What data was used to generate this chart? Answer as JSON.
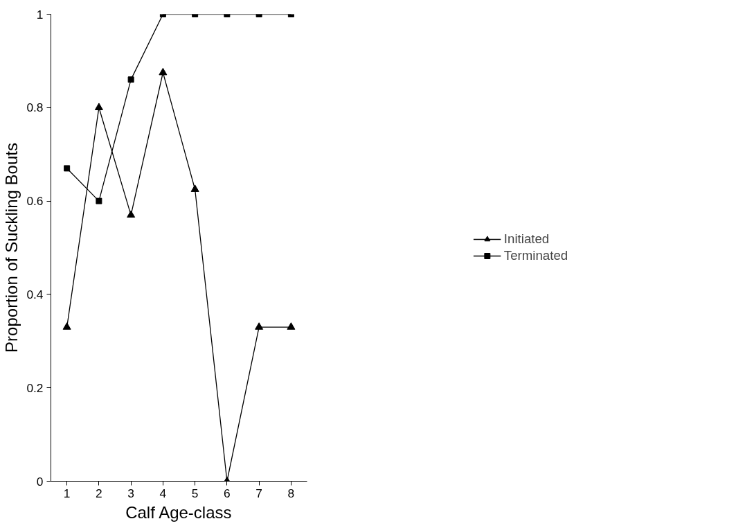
{
  "chart_data": {
    "type": "line",
    "xlabel": "Calf Age-class",
    "ylabel": "Proportion of Suckling Bouts",
    "categories": [
      "1",
      "2",
      "3",
      "4",
      "5",
      "6",
      "7",
      "8"
    ],
    "series": [
      {
        "name": "Initiated",
        "color": "#000000",
        "marker": "triangle",
        "values": [
          0.33,
          0.8,
          0.57,
          0.875,
          0.625,
          0,
          0.33,
          0.33
        ]
      },
      {
        "name": "Terminated",
        "color": "#000000",
        "marker": "square",
        "values": [
          0.67,
          0.6,
          0.86,
          1,
          1,
          1,
          1,
          1
        ]
      }
    ],
    "ylim": [
      0,
      1
    ],
    "yticks": [
      0,
      0.2,
      0.4,
      0.6,
      0.8,
      1
    ],
    "grid": false,
    "legend": "right",
    "line_style": "solid"
  }
}
